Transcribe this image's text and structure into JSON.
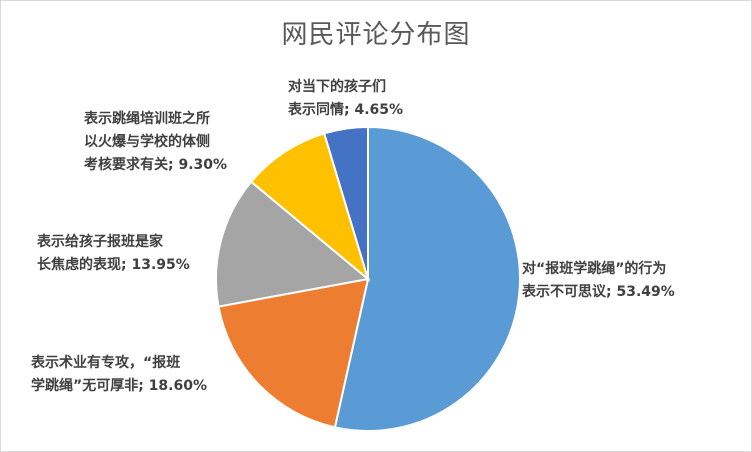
{
  "chart_data": {
    "type": "pie",
    "title": "网民评论分布图",
    "slices": [
      {
        "label": "对“报班学跳绳”的行为表示不可思议",
        "value": 53.49,
        "display": "53.49%",
        "color": "#5b9bd5"
      },
      {
        "label": "表示术业有专攻，“报班学跳绳”无可厚非",
        "value": 18.6,
        "display": "18.60%",
        "color": "#ed7d31"
      },
      {
        "label": "表示给孩子报班是家长焦虑的表现",
        "value": 13.95,
        "display": "13.95%",
        "color": "#a5a5a5"
      },
      {
        "label": "表示跳绳培训班之所以火爆与学校的体侧考核要求有关",
        "value": 9.3,
        "display": "9.30%",
        "color": "#ffc000"
      },
      {
        "label": "对当下的孩子们表示同情",
        "value": 4.65,
        "display": "4.65%",
        "color": "#4472c4"
      }
    ],
    "data_labels": [
      {
        "lines": [
          "对“报班学跳绳”的行为",
          "表示不可思议; 53.49%"
        ]
      },
      {
        "lines": [
          "表示术业有专攻，“报班",
          "学跳绳”无可厚非; 18.60%"
        ]
      },
      {
        "lines": [
          "表示给孩子报班是家",
          "长焦虑的表现; 13.95%"
        ]
      },
      {
        "lines": [
          "表示跳绳培训班之所",
          "以火爆与学校的体侧",
          "考核要求有关; 9.30%"
        ]
      },
      {
        "lines": [
          "对当下的孩子们",
          "表示同情; 4.65%"
        ]
      }
    ]
  }
}
